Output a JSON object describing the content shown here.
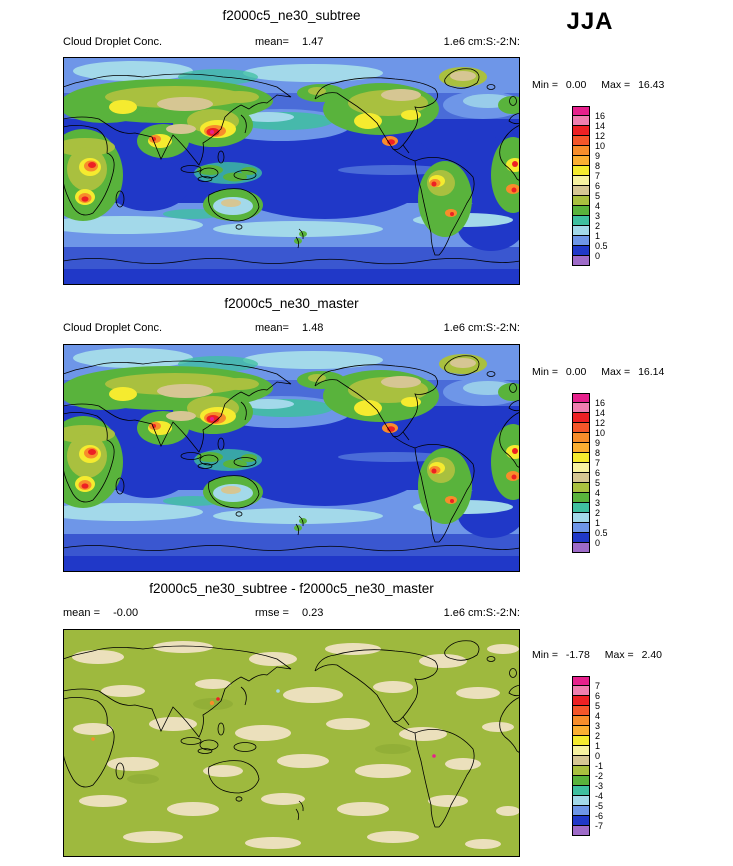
{
  "season_label": "JJA",
  "palette": [
    "#E6218C",
    "#F07EB0",
    "#ED2024",
    "#F4562A",
    "#F78D2B",
    "#FBAF32",
    "#F5EB2F",
    "#F7F2A0",
    "#D6C693",
    "#A9C03F",
    "#59B33C",
    "#3FC0A0",
    "#A3D9EA",
    "#6E96E8",
    "#2038C8",
    "#9E6BC8"
  ],
  "panels": [
    {
      "title": "f2000c5_ne30_subtree",
      "left_label": "Cloud Droplet Conc.",
      "left_value": "",
      "mid_label": "mean=",
      "mid_value": "1.47",
      "units": "1.e6 cm:S:-2:N:",
      "min_label": "Min =",
      "min_value": "0.00",
      "max_label": "Max =",
      "max_value": "16.43",
      "colorbar_labels": [
        "16",
        "14",
        "12",
        "10",
        "9",
        "8",
        "7",
        "6",
        "5",
        "4",
        "3",
        "2",
        "1",
        "0.5",
        "0"
      ]
    },
    {
      "title": "f2000c5_ne30_master",
      "left_label": "Cloud Droplet Conc.",
      "left_value": "",
      "mid_label": "mean=",
      "mid_value": "1.48",
      "units": "1.e6 cm:S:-2:N:",
      "min_label": "Min =",
      "min_value": "0.00",
      "max_label": "Max =",
      "max_value": "16.14",
      "colorbar_labels": [
        "16",
        "14",
        "12",
        "10",
        "9",
        "8",
        "7",
        "6",
        "5",
        "4",
        "3",
        "2",
        "1",
        "0.5",
        "0"
      ]
    },
    {
      "title": "f2000c5_ne30_subtree - f2000c5_ne30_master",
      "left_label": "mean =",
      "left_value": "-0.00",
      "mid_label": "rmse =",
      "mid_value": "0.23",
      "units": "1.e6 cm:S:-2:N:",
      "min_label": "Min =",
      "min_value": "-1.78",
      "max_label": "Max =",
      "max_value": "2.40",
      "colorbar_labels": [
        "7",
        "6",
        "5",
        "4",
        "3",
        "2",
        "1",
        "0",
        "-1",
        "-2",
        "-3",
        "-4",
        "-5",
        "-6",
        "-7"
      ]
    }
  ],
  "chart_data": [
    {
      "type": "heatmap",
      "subtype": "global_latlon_filled_contour_map",
      "title": "f2000c5_ne30_subtree",
      "variable": "Cloud Droplet Conc.",
      "season": "JJA",
      "units": "1.e6 cm:S:-2:N:",
      "mean": 1.47,
      "min": 0.0,
      "max": 16.43,
      "contour_levels": [
        0,
        0.5,
        1,
        2,
        3,
        4,
        5,
        6,
        7,
        8,
        9,
        10,
        12,
        14,
        16
      ],
      "legend_position": "right",
      "grid": false
    },
    {
      "type": "heatmap",
      "subtype": "global_latlon_filled_contour_map",
      "title": "f2000c5_ne30_master",
      "variable": "Cloud Droplet Conc.",
      "season": "JJA",
      "units": "1.e6 cm:S:-2:N:",
      "mean": 1.48,
      "min": 0.0,
      "max": 16.14,
      "contour_levels": [
        0,
        0.5,
        1,
        2,
        3,
        4,
        5,
        6,
        7,
        8,
        9,
        10,
        12,
        14,
        16
      ],
      "legend_position": "right",
      "grid": false
    },
    {
      "type": "heatmap",
      "subtype": "global_latlon_difference_map",
      "title": "f2000c5_ne30_subtree - f2000c5_ne30_master",
      "variable": "Cloud Droplet Conc.",
      "season": "JJA",
      "units": "1.e6 cm:S:-2:N:",
      "mean": -0.0,
      "rmse": 0.23,
      "min": -1.78,
      "max": 2.4,
      "contour_levels": [
        -7,
        -6,
        -5,
        -4,
        -3,
        -2,
        -1,
        0,
        1,
        2,
        3,
        4,
        5,
        6,
        7
      ],
      "legend_position": "right",
      "grid": false
    }
  ]
}
